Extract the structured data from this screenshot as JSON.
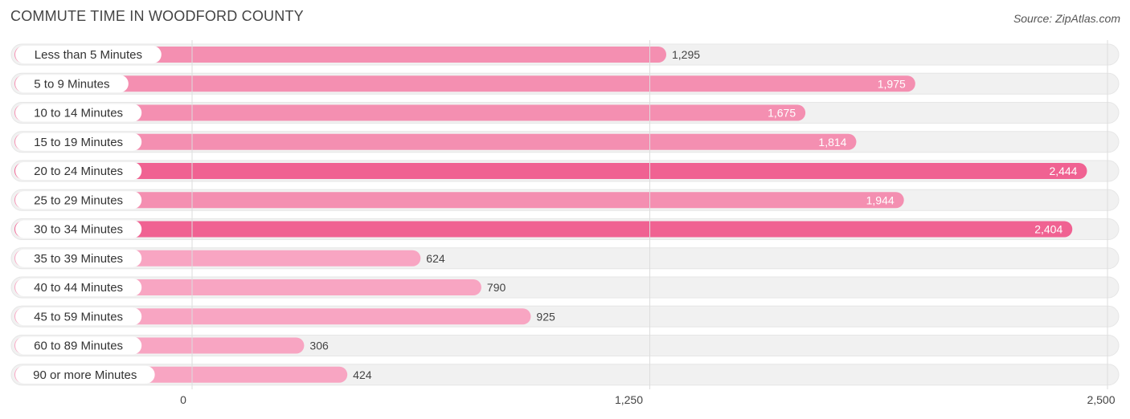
{
  "header": {
    "title": "COMMUTE TIME IN WOODFORD COUNTY",
    "source": "Source: ZipAtlas.com"
  },
  "chart_data": {
    "type": "bar",
    "orientation": "horizontal",
    "title": "COMMUTE TIME IN WOODFORD COUNTY",
    "categories": [
      "Less than 5 Minutes",
      "5 to 9 Minutes",
      "10 to 14 Minutes",
      "15 to 19 Minutes",
      "20 to 24 Minutes",
      "25 to 29 Minutes",
      "30 to 34 Minutes",
      "35 to 39 Minutes",
      "40 to 44 Minutes",
      "45 to 59 Minutes",
      "60 to 89 Minutes",
      "90 or more Minutes"
    ],
    "values": [
      1295,
      1975,
      1675,
      1814,
      2444,
      1944,
      2404,
      624,
      790,
      925,
      306,
      424
    ],
    "value_labels": [
      "1,295",
      "1,975",
      "1,675",
      "1,814",
      "2,444",
      "1,944",
      "2,404",
      "624",
      "790",
      "925",
      "306",
      "424"
    ],
    "xlim": [
      0,
      2500
    ],
    "ticks": [
      0,
      1250,
      2500
    ],
    "tick_labels": [
      "0",
      "1,250",
      "2,500"
    ],
    "grid": true,
    "colors": {
      "bar_high": "#f06292",
      "bar_mid": "#f48fb1",
      "bar_low": "#f8a5c2",
      "track": "#f1f1f1",
      "grid": "#dddddd"
    }
  }
}
